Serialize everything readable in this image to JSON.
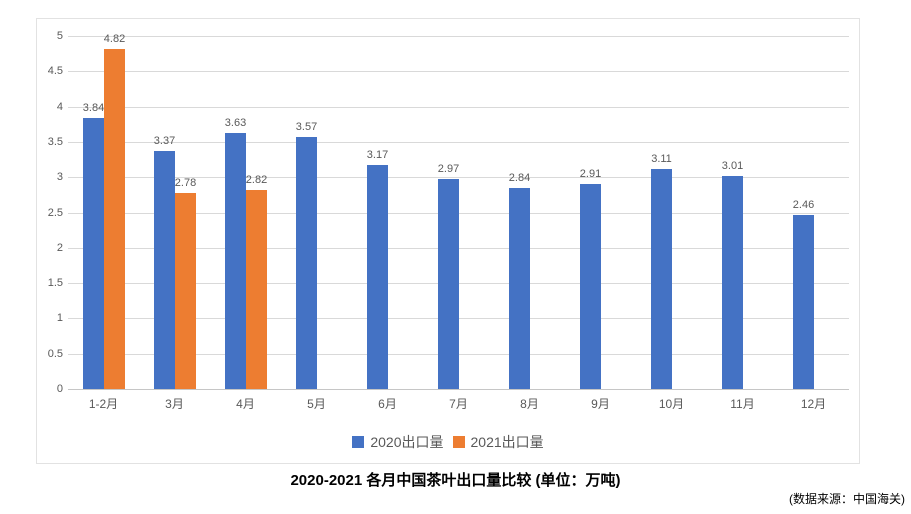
{
  "chart_data": {
    "type": "bar",
    "title": "2020-2021 各月中国茶叶出口量比较 (单位：万吨)",
    "source_note": "(数据来源：中国海关)",
    "categories": [
      "1-2月",
      "3月",
      "4月",
      "5月",
      "6月",
      "7月",
      "8月",
      "9月",
      "10月",
      "11月",
      "12月"
    ],
    "series": [
      {
        "name": "2020出口量",
        "color": "#4472C4",
        "values": [
          3.84,
          3.37,
          3.63,
          3.57,
          3.17,
          2.97,
          2.84,
          2.91,
          3.11,
          3.01,
          2.46
        ]
      },
      {
        "name": "2021出口量",
        "color": "#ED7D31",
        "values": [
          4.82,
          2.78,
          2.82,
          null,
          null,
          null,
          null,
          null,
          null,
          null,
          null
        ]
      }
    ],
    "ylim": [
      0,
      5
    ],
    "y_tick_step": 0.5,
    "y_tick_labels": [
      "0",
      "0.5",
      "1",
      "1.5",
      "2",
      "2.5",
      "3",
      "3.5",
      "4",
      "4.5",
      "5"
    ],
    "grid": true,
    "value_labels": true,
    "legend_position": "bottom",
    "colors": {
      "grid": "#d9d9d9",
      "axis_line": "#c6c6c6",
      "label_text": "#595959",
      "title_text": "#000000",
      "frame_border": "#e2e2e2"
    }
  }
}
